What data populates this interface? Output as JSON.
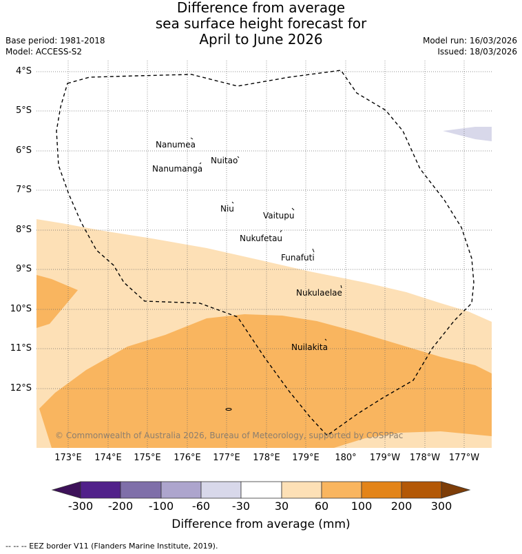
{
  "title": {
    "line1": "Difference from average",
    "line2": "sea surface height forecast for",
    "line3": "April to June 2026"
  },
  "meta": {
    "base_period": "Base period: 1981-2018",
    "model": "Model: ACCESS-S2",
    "model_run": "Model run: 16/03/2026",
    "issued": "Issued: 18/03/2026"
  },
  "map": {
    "lat_labels": [
      "4°S",
      "5°S",
      "6°S",
      "7°S",
      "8°S",
      "9°S",
      "10°S",
      "11°S",
      "12°S"
    ],
    "lon_labels": [
      "173°E",
      "174°E",
      "175°E",
      "176°E",
      "177°E",
      "178°E",
      "179°E",
      "180°",
      "179°W",
      "178°W",
      "177°W"
    ],
    "places": [
      "Nanumea",
      "Nuitao",
      "Nanumanga",
      "Niu",
      "Vaitupu",
      "Nukufetau",
      "Funafuti",
      "Nukulaelae",
      "Nuilakita"
    ],
    "copyright": "© Commonwealth of Australia 2026, Bureau of Meteorology, supported by COSPPac"
  },
  "colorbar": {
    "labels": [
      "-300",
      "-200",
      "-100",
      "-60",
      "-30",
      "30",
      "60",
      "100",
      "200",
      "300"
    ],
    "colors": [
      "#3d1159",
      "#51218a",
      "#7f6fa9",
      "#ada5cd",
      "#d8d8ea",
      "#ffffff",
      "#fde0b6",
      "#f9b55f",
      "#e38418",
      "#b35806",
      "#7d3d08"
    ],
    "title": "Difference from average (mm)"
  },
  "footer": "--  --  -- EEZ border V11 (Flanders Marine Institute, 2019)."
}
